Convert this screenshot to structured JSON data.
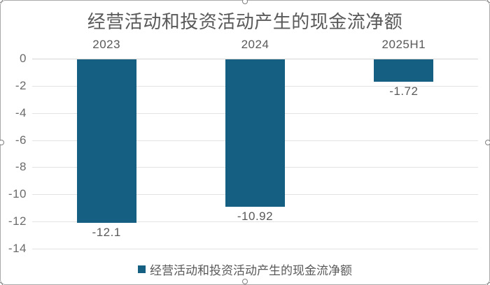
{
  "title": {
    "text": "经营活动和投资活动产生的现金流净额"
  },
  "legend": {
    "label": "经营活动和投资活动产生的现金流净额",
    "marker_color": "#156082"
  },
  "chart_data": {
    "type": "bar",
    "title": "经营活动和投资活动产生的现金流净额",
    "categories": [
      "2023",
      "2024",
      "2025H1"
    ],
    "series": [
      {
        "name": "经营活动和投资活动产生的现金流净额",
        "values": [
          -12.1,
          -10.92,
          -1.72
        ]
      }
    ],
    "data_labels": [
      "-12.1",
      "-10.92",
      "-1.72"
    ],
    "yticks": [
      0,
      -2,
      -4,
      -6,
      -8,
      -10,
      -12,
      -14
    ],
    "ytick_labels": [
      "0",
      "-2",
      "-4",
      "-6",
      "-8",
      "-10",
      "-12",
      "-14"
    ],
    "ylim": [
      -14,
      0
    ],
    "xlabel": "",
    "ylabel": "",
    "grid": true,
    "legend_position": "bottom",
    "bar_color": "#156082",
    "label_color": "#595959",
    "gridline_color": "#E3E3E3",
    "border_color": "#A9A9A9",
    "selected": true
  }
}
